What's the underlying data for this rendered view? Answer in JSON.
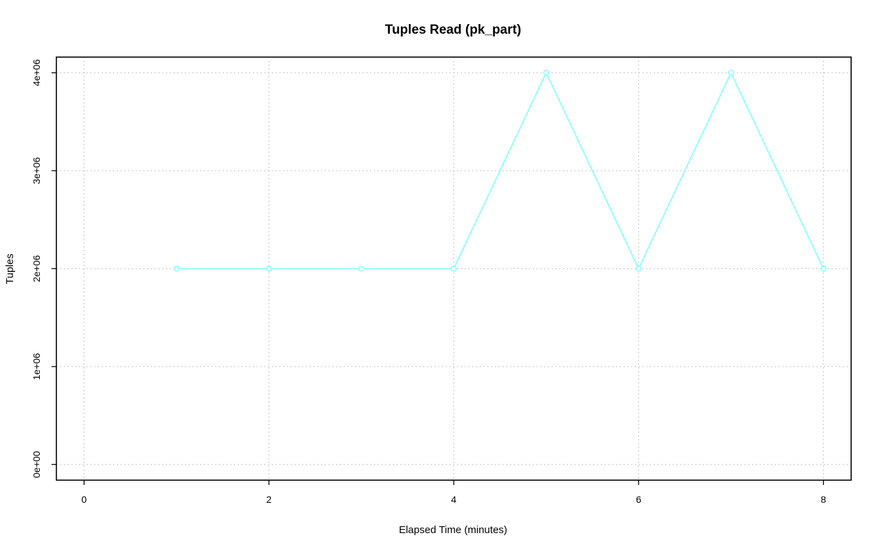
{
  "chart_data": {
    "type": "line",
    "title": "Tuples Read (pk_part)",
    "xlabel": "Elapsed Time (minutes)",
    "ylabel": "Tuples",
    "xlim": [
      -0.3,
      8.3
    ],
    "ylim": [
      -160000,
      4160000
    ],
    "x_ticks": [
      0,
      2,
      4,
      6,
      8
    ],
    "x_tick_labels": [
      "0",
      "2",
      "4",
      "6",
      "8"
    ],
    "y_ticks": [
      0,
      1000000,
      2000000,
      3000000,
      4000000
    ],
    "y_tick_labels": [
      "0e+00",
      "1e+06",
      "2e+06",
      "3e+06",
      "4e+06"
    ],
    "grid": true,
    "series": [
      {
        "color": "#7fffff",
        "marker": "circle",
        "x": [
          1,
          2,
          3,
          4,
          5,
          6,
          7,
          8
        ],
        "y": [
          2000000,
          2000000,
          2000000,
          2000000,
          4000000,
          2000000,
          4000000,
          2000000
        ]
      }
    ]
  }
}
